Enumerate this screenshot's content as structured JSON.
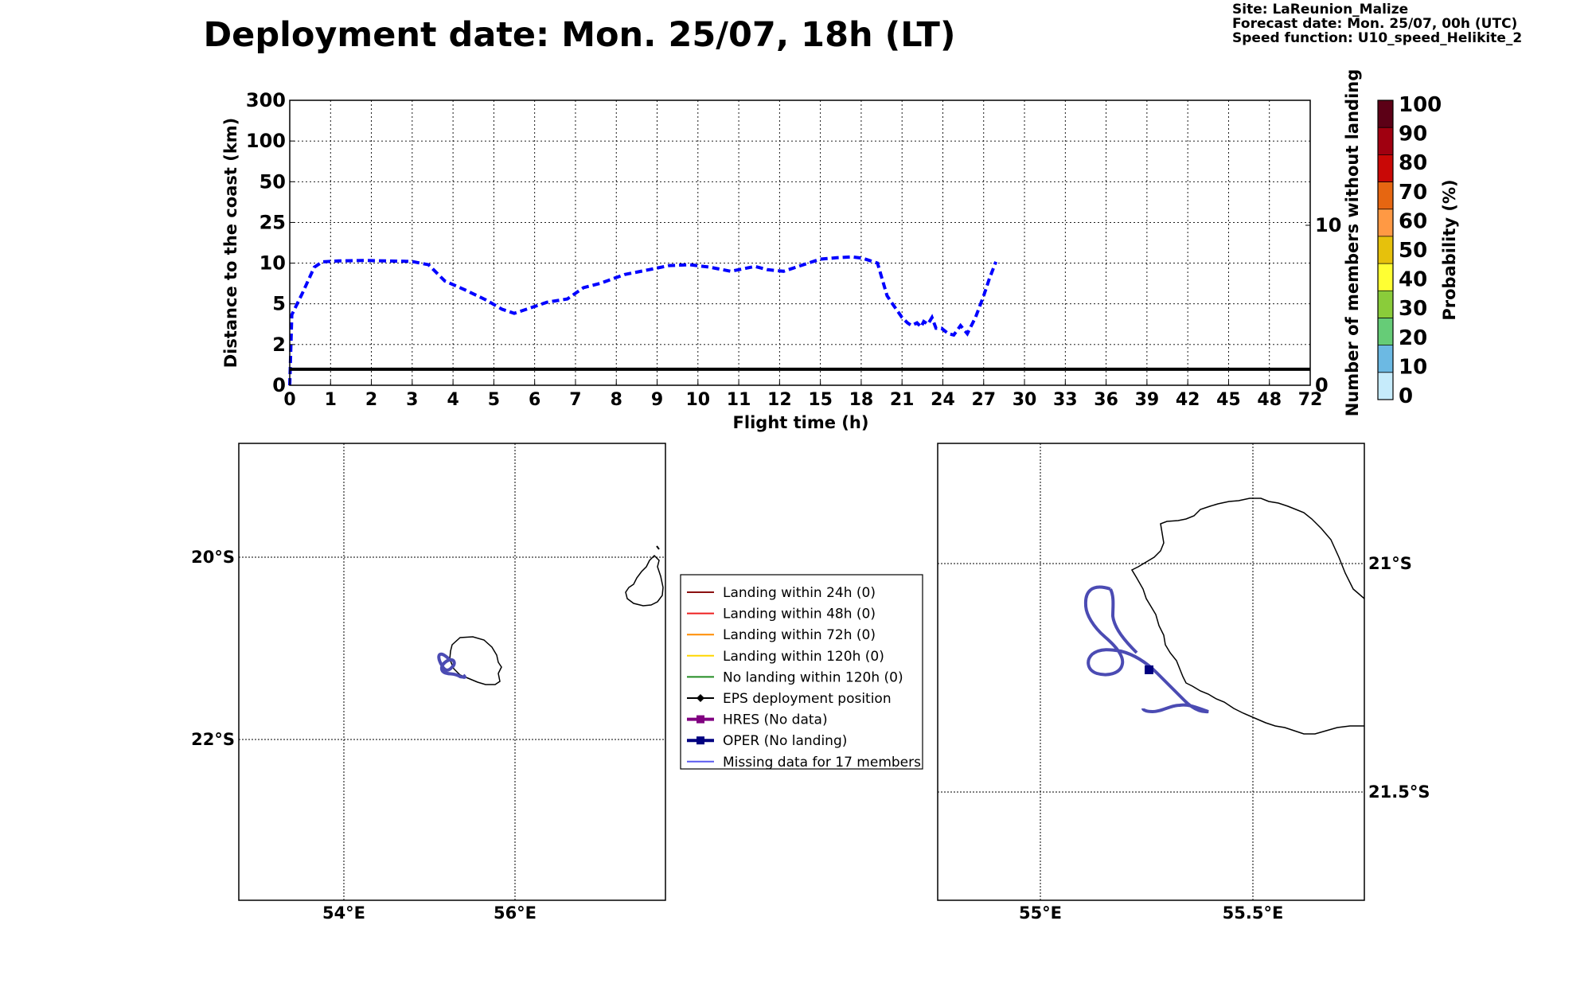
{
  "header": {
    "title": "Deployment date: Mon. 25/07, 18h (LT)",
    "site": "Site: LaReunion_Malize",
    "forecast": "Forecast date: Mon. 25/07, 00h (UTC)",
    "speed": "Speed function: U10_speed_Helikite_2"
  },
  "chart_data": [
    {
      "type": "line",
      "xlabel": "Flight time (h)",
      "ylabel": "Distance to the coast (km)",
      "y2label": "Number of members without landing",
      "x_ticks": [
        "0",
        "1",
        "2",
        "3",
        "4",
        "5",
        "6",
        "7",
        "8",
        "9",
        "10",
        "11",
        "12",
        "15",
        "18",
        "21",
        "24",
        "27",
        "30",
        "33",
        "36",
        "39",
        "42",
        "45",
        "48",
        "72"
      ],
      "y_ticks": [
        "0",
        "2",
        "5",
        "10",
        "25",
        "50",
        "100",
        "300"
      ],
      "y2_ticks": [
        "0",
        "10"
      ],
      "grid": true,
      "series": [
        {
          "style": "dashed",
          "color": "#0000ff",
          "x": [
            0,
            0.05,
            0.3,
            0.6,
            0.8,
            1.2,
            1.8,
            2.4,
            3.0,
            3.4,
            3.8,
            4.3,
            4.8,
            5.2,
            5.5,
            5.8,
            6.3,
            6.8,
            7.2,
            7.6,
            8.2,
            8.8,
            9.3,
            9.8,
            10.3,
            10.8,
            11.4,
            11.7,
            12.3,
            15.0,
            16.2,
            17.3,
            18.1,
            18.6,
            19.2,
            19.9,
            20.3,
            21.0,
            21.4,
            21.7,
            22.1,
            22.4,
            22.6,
            22.9,
            23.2,
            23.5,
            23.9,
            24.4,
            24.8,
            25.3,
            25.8,
            26.4,
            27.0,
            27.4,
            27.9
          ],
          "y": [
            0,
            4.2,
            6.2,
            9.5,
            10.5,
            10.8,
            11.0,
            10.8,
            10.6,
            9.8,
            7.8,
            6.7,
            5.5,
            4.6,
            4.3,
            4.6,
            5.2,
            5.6,
            7.0,
            7.5,
            8.6,
            9.2,
            9.7,
            9.8,
            9.5,
            9.0,
            9.6,
            9.2,
            9.0,
            11.5,
            12.0,
            12.3,
            11.8,
            11.0,
            10.0,
            6.0,
            5.0,
            4.0,
            3.6,
            3.4,
            3.6,
            3.3,
            3.7,
            3.5,
            4.0,
            3.2,
            3.2,
            2.8,
            2.7,
            3.4,
            2.8,
            4.0,
            6.0,
            8.0,
            10.5
          ]
        },
        {
          "style": "solid",
          "color": "#000000",
          "y2": 1,
          "x_range": [
            0,
            72
          ]
        }
      ]
    },
    {
      "type": "colorbar",
      "label": "Probability (%)",
      "ticks": [
        "0",
        "10",
        "20",
        "30",
        "40",
        "50",
        "60",
        "70",
        "80",
        "90",
        "100"
      ],
      "colors": [
        "#c6ebfb",
        "#6cb9e3",
        "#66cc77",
        "#8acc3a",
        "#ffff33",
        "#e6c10c",
        "#ff9944",
        "#e66611",
        "#c90806",
        "#a00010",
        "#5c0016"
      ]
    },
    {
      "type": "map",
      "name": "overview",
      "lon_ticks": [
        "54°E",
        "56°E"
      ],
      "lat_ticks": [
        "20°S",
        "22°S"
      ]
    },
    {
      "type": "map",
      "name": "zoom",
      "lon_ticks": [
        "55°E",
        "55.5°E"
      ],
      "lat_ticks": [
        "21°S",
        "21.5°S"
      ]
    }
  ],
  "legend": {
    "items": [
      {
        "label": "Landing within 24h (0)",
        "color": "#8b1010",
        "marker": "none",
        "stroke": 2
      },
      {
        "label": "Landing within 48h (0)",
        "color": "#ee2020",
        "marker": "none",
        "stroke": 2
      },
      {
        "label": "Landing within 72h (0)",
        "color": "#ff8c00",
        "marker": "none",
        "stroke": 2
      },
      {
        "label": "Landing within 120h (0)",
        "color": "#ffd700",
        "marker": "none",
        "stroke": 2
      },
      {
        "label": "No landing within 120h (0)",
        "color": "#228b22",
        "marker": "none",
        "stroke": 2
      },
      {
        "label": "EPS deployment position",
        "color": "#000000",
        "marker": "diamond",
        "stroke": 2
      },
      {
        "label": "HRES (No data)",
        "color": "#800080",
        "marker": "square",
        "stroke": 4
      },
      {
        "label": "OPER (No landing)",
        "color": "#000080",
        "marker": "square",
        "stroke": 4
      },
      {
        "label": "Missing data for 17 members",
        "color": "#5a5af0",
        "marker": "none",
        "stroke": 2
      }
    ]
  }
}
